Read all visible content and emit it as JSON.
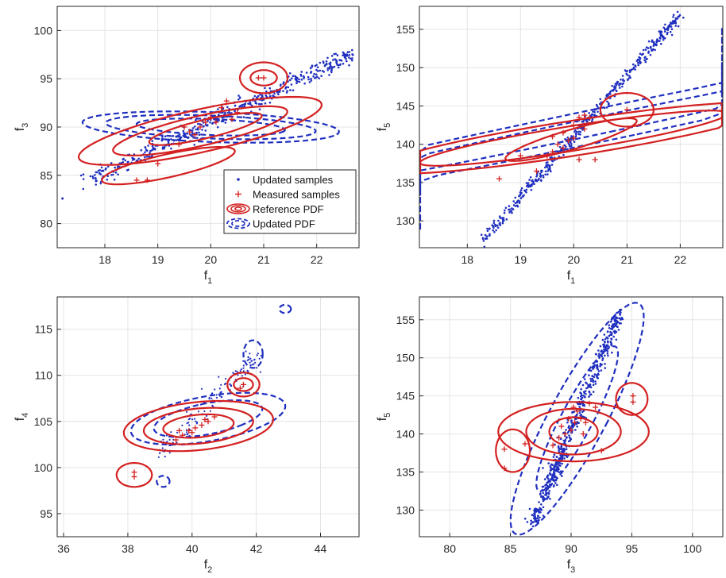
{
  "figure": {
    "colors": {
      "updated": "#1f2fbf",
      "reference": "#d42020",
      "grid": "#e4e4e4",
      "axis": "#262626"
    },
    "legend": {
      "entries": [
        {
          "label": "Updated samples",
          "style": "dot"
        },
        {
          "label": "Measured samples",
          "style": "plus"
        },
        {
          "label": "Reference PDF",
          "style": "red-contour"
        },
        {
          "label": "Updated PDF",
          "style": "blue-dashed-contour"
        }
      ]
    }
  },
  "chart_data": [
    {
      "type": "scatter",
      "xlabel": "f",
      "xlabel_sub": "1",
      "ylabel": "f",
      "ylabel_sub": "3",
      "xlim": [
        17.1,
        22.8
      ],
      "ylim": [
        77.5,
        102.5
      ],
      "xticks": [
        18,
        19,
        20,
        21,
        22
      ],
      "yticks": [
        80,
        85,
        90,
        95,
        100
      ],
      "grid": true,
      "legend_position": "bottom-right",
      "updated_samples_line": {
        "from": [
          17.7,
          84.5
        ],
        "to": [
          22.7,
          97.6
        ],
        "count": 460,
        "spread_x": 0.28,
        "spread_y": 1.1,
        "outlier": [
          17.2,
          82.6
        ]
      },
      "measured_samples": [
        [
          18.6,
          84.5
        ],
        [
          18.8,
          84.5
        ],
        [
          19.0,
          86.2
        ],
        [
          19.4,
          88.2
        ],
        [
          19.6,
          89.5
        ],
        [
          19.8,
          90.0
        ],
        [
          19.9,
          90.5
        ],
        [
          20.0,
          91.0
        ],
        [
          20.1,
          90.5
        ],
        [
          20.2,
          92.0
        ],
        [
          20.3,
          92.7
        ],
        [
          20.5,
          91.5
        ],
        [
          20.9,
          95.1
        ],
        [
          21.0,
          95.1
        ],
        [
          19.5,
          90.0
        ],
        [
          19.7,
          89.2
        ],
        [
          20.4,
          90.8
        ]
      ],
      "reference_pdf_contours": [
        {
          "cx": 19.8,
          "cy": 89.6,
          "rx": 1.3,
          "ry": 4.0,
          "rot": 30
        },
        {
          "cx": 19.8,
          "cy": 89.6,
          "rx": 0.9,
          "ry": 2.9,
          "rot": 30
        },
        {
          "cx": 19.9,
          "cy": 89.8,
          "rx": 0.55,
          "ry": 1.9,
          "rot": 30
        },
        {
          "cx": 19.2,
          "cy": 86.0,
          "rx": 0.7,
          "ry": 2.2,
          "rot": 30
        },
        {
          "cx": 21.0,
          "cy": 95.1,
          "rx": 0.45,
          "ry": 1.6,
          "rot": 0
        },
        {
          "cx": 21.0,
          "cy": 95.1,
          "rx": 0.25,
          "ry": 0.8,
          "rot": 0
        }
      ],
      "updated_pdf_contours": [
        {
          "cx": 20.0,
          "cy": 90.0,
          "rx": 2.5,
          "ry": 1.5,
          "rot": 18
        },
        {
          "cx": 20.0,
          "cy": 90.0,
          "rx": 2.05,
          "ry": 1.15,
          "rot": 18
        },
        {
          "cx": 20.0,
          "cy": 90.0,
          "rx": 1.45,
          "ry": 0.8,
          "rot": 18
        }
      ]
    },
    {
      "type": "scatter",
      "xlabel": "f",
      "xlabel_sub": "1",
      "ylabel": "f",
      "ylabel_sub": "5",
      "xlim": [
        17.1,
        22.8
      ],
      "ylim": [
        126.5,
        158
      ],
      "xticks": [
        18,
        19,
        20,
        21,
        22
      ],
      "yticks": [
        130,
        135,
        140,
        145,
        150,
        155
      ],
      "grid": true,
      "updated_samples_line": {
        "from": [
          18.3,
          127.5
        ],
        "to": [
          22.0,
          157.0
        ],
        "count": 460,
        "spread_x": 0.12,
        "spread_y": 1.0
      },
      "measured_samples": [
        [
          18.6,
          135.5
        ],
        [
          19.0,
          138.5
        ],
        [
          19.3,
          136.5
        ],
        [
          19.5,
          138.5
        ],
        [
          19.6,
          139.0
        ],
        [
          19.6,
          141.0
        ],
        [
          19.7,
          140.0
        ],
        [
          19.8,
          139.5
        ],
        [
          19.8,
          141.5
        ],
        [
          19.9,
          140.5
        ],
        [
          20.0,
          140.8
        ],
        [
          20.0,
          142.5
        ],
        [
          20.1,
          143.5
        ],
        [
          20.2,
          143.8
        ],
        [
          20.2,
          142.0
        ],
        [
          20.3,
          143.5
        ],
        [
          20.4,
          138.0
        ],
        [
          20.1,
          138.0
        ],
        [
          21.0,
          144.5
        ]
      ],
      "reference_pdf_contours": [
        {
          "cx": 20.0,
          "cy": 140.8,
          "rx": 1.5,
          "ry": 5.8,
          "rot": 38
        },
        {
          "cx": 20.0,
          "cy": 140.8,
          "rx": 1.05,
          "ry": 4.5,
          "rot": 38
        },
        {
          "cx": 19.95,
          "cy": 140.6,
          "rx": 0.55,
          "ry": 3.0,
          "rot": 22
        },
        {
          "cx": 21.0,
          "cy": 144.5,
          "rx": 0.5,
          "ry": 2.2,
          "rot": 0
        }
      ],
      "updated_pdf_contours": [
        {
          "cx": 20.15,
          "cy": 142.0,
          "rx": 1.25,
          "ry": 16.0,
          "rot": 34
        },
        {
          "cx": 20.15,
          "cy": 142.0,
          "rx": 0.65,
          "ry": 10.5,
          "rot": 34
        }
      ]
    },
    {
      "type": "scatter",
      "xlabel": "f",
      "xlabel_sub": "2",
      "ylabel": "f",
      "ylabel_sub": "4",
      "xlim": [
        35.8,
        45.2
      ],
      "ylim": [
        92.5,
        118.5
      ],
      "xticks": [
        36,
        38,
        40,
        42,
        44
      ],
      "yticks": [
        95,
        100,
        105,
        110,
        115
      ],
      "grid": true,
      "updated_samples_line": null,
      "measured_samples": [
        [
          38.2,
          99.0
        ],
        [
          38.2,
          99.5
        ],
        [
          39.5,
          103.0
        ],
        [
          39.7,
          103.5
        ],
        [
          39.9,
          104.0
        ],
        [
          40.1,
          104.3
        ],
        [
          40.3,
          104.6
        ],
        [
          40.5,
          105.0
        ],
        [
          40.7,
          105.5
        ],
        [
          40.0,
          103.8
        ],
        [
          39.6,
          104.0
        ],
        [
          40.4,
          105.2
        ],
        [
          41.5,
          108.6
        ],
        [
          41.6,
          109.0
        ]
      ],
      "reference_pdf_contours": [
        {
          "cx": 40.2,
          "cy": 104.5,
          "rx": 2.1,
          "ry": 2.9,
          "rot": 30
        },
        {
          "cx": 40.2,
          "cy": 104.5,
          "rx": 1.55,
          "ry": 2.1,
          "rot": 30
        },
        {
          "cx": 40.2,
          "cy": 104.5,
          "rx": 1.0,
          "ry": 1.35,
          "rot": 30
        },
        {
          "cx": 38.2,
          "cy": 99.2,
          "rx": 0.55,
          "ry": 1.3,
          "rot": 0
        },
        {
          "cx": 41.6,
          "cy": 109.0,
          "rx": 0.5,
          "ry": 1.3,
          "rot": 0
        },
        {
          "cx": 41.6,
          "cy": 109.0,
          "rx": 0.3,
          "ry": 0.7,
          "rot": 0
        }
      ],
      "updated_pdf_contours": [
        {
          "cx": 40.5,
          "cy": 105.3,
          "rx": 1.85,
          "ry": 3.2,
          "rot": 36
        },
        {
          "cx": 40.5,
          "cy": 105.3,
          "rx": 1.25,
          "ry": 2.3,
          "rot": 36
        },
        {
          "cx": 41.9,
          "cy": 112.3,
          "rx": 0.3,
          "ry": 1.5,
          "rot": 0
        },
        {
          "cx": 39.1,
          "cy": 98.5,
          "rx": 0.2,
          "ry": 0.6,
          "rot": 0
        },
        {
          "cx": 42.9,
          "cy": 117.2,
          "rx": 0.18,
          "ry": 0.45,
          "rot": 0
        }
      ]
    },
    {
      "type": "scatter",
      "xlabel": "f",
      "xlabel_sub": "3",
      "ylabel": "f",
      "ylabel_sub": "5",
      "xlim": [
        77.5,
        102.5
      ],
      "ylim": [
        126.5,
        158
      ],
      "xticks": [
        80,
        85,
        90,
        95,
        100
      ],
      "yticks": [
        130,
        135,
        140,
        145,
        150,
        155
      ],
      "grid": true,
      "updated_samples_line": {
        "from": [
          86.8,
          128.0
        ],
        "to": [
          94.0,
          156.0
        ],
        "count": 560,
        "spread_x": 0.7,
        "spread_y": 1.2
      },
      "measured_samples": [
        [
          84.5,
          138.0
        ],
        [
          84.5,
          135.5
        ],
        [
          86.2,
          138.7
        ],
        [
          88.5,
          138.5
        ],
        [
          89.0,
          139.5
        ],
        [
          89.2,
          141.0
        ],
        [
          89.5,
          140.0
        ],
        [
          89.8,
          142.0
        ],
        [
          90.0,
          140.5
        ],
        [
          90.2,
          143.5
        ],
        [
          90.3,
          141.5
        ],
        [
          90.5,
          143.0
        ],
        [
          90.8,
          142.0
        ],
        [
          91.0,
          140.0
        ],
        [
          91.2,
          141.5
        ],
        [
          91.5,
          144.0
        ],
        [
          92.0,
          143.5
        ],
        [
          92.5,
          137.8
        ],
        [
          95.1,
          145.0
        ],
        [
          95.1,
          144.2
        ]
      ],
      "reference_pdf_contours": [
        {
          "cx": 90.2,
          "cy": 140.3,
          "rx": 6.2,
          "ry": 3.9,
          "rot": 0
        },
        {
          "cx": 90.2,
          "cy": 140.3,
          "rx": 3.9,
          "ry": 3.0,
          "rot": 0
        },
        {
          "cx": 90.2,
          "cy": 140.3,
          "rx": 2.0,
          "ry": 1.9,
          "rot": 0
        },
        {
          "cx": 85.2,
          "cy": 137.8,
          "rx": 1.4,
          "ry": 2.8,
          "rot": 0
        },
        {
          "cx": 95.0,
          "cy": 144.6,
          "rx": 1.3,
          "ry": 2.1,
          "rot": 0
        }
      ],
      "updated_pdf_contours": [
        {
          "cx": 90.5,
          "cy": 142.0,
          "rx": 2.5,
          "ry": 16.0,
          "rot": 18
        },
        {
          "cx": 90.5,
          "cy": 142.0,
          "rx": 1.4,
          "ry": 10.0,
          "rot": 18
        }
      ]
    }
  ]
}
